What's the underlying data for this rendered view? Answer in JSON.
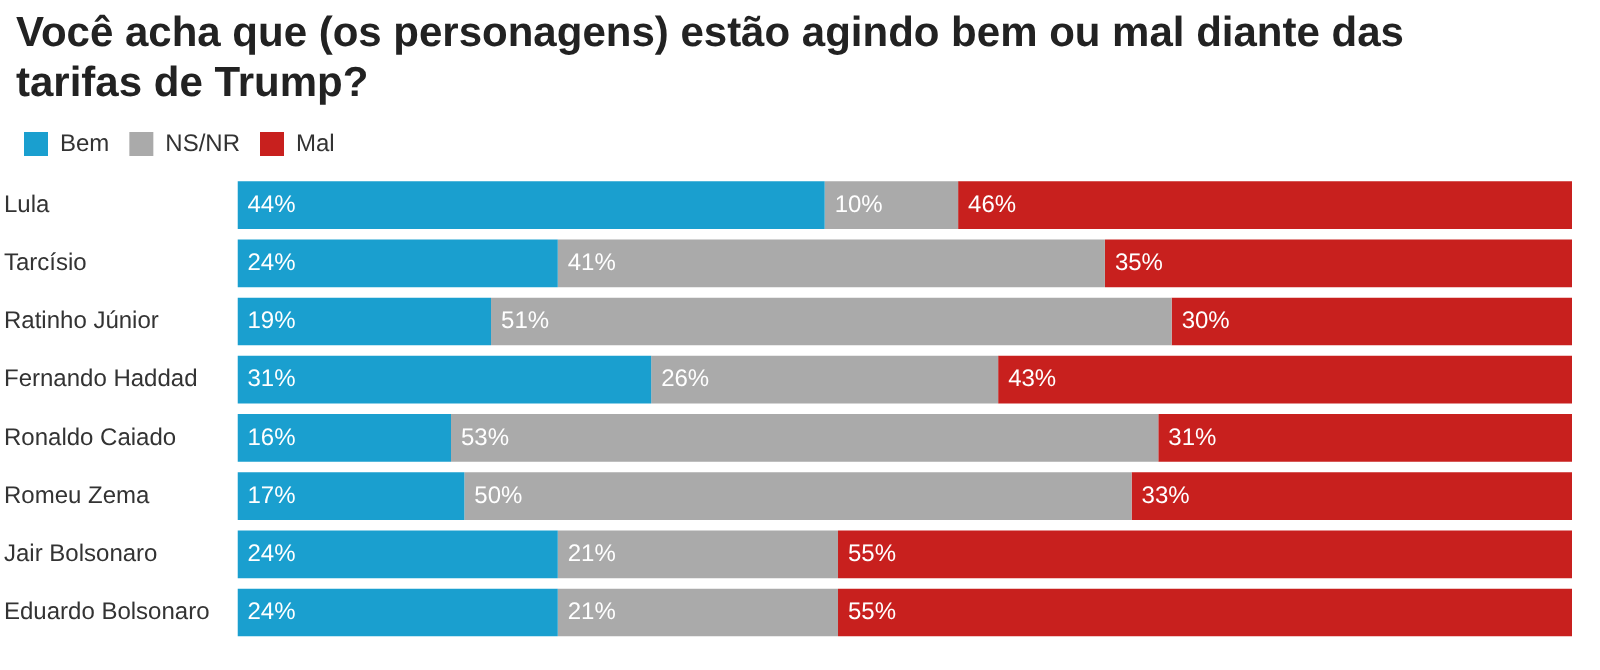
{
  "chart_data": {
    "type": "bar",
    "orientation": "horizontal",
    "stacked": true,
    "title": "Você acha que (os personagens) estão agindo bem ou mal diante das tarifas de Trump?",
    "categories": [
      "Lula",
      "Tarcísio",
      "Ratinho Júnior",
      "Fernando Haddad",
      "Ronaldo Caiado",
      "Romeu Zema",
      "Jair Bolsonaro",
      "Eduardo Bolsonaro"
    ],
    "series": [
      {
        "name": "Bem",
        "color": "#1a9fcf",
        "values": [
          44,
          24,
          19,
          31,
          16,
          17,
          24,
          24
        ],
        "value_labels": [
          "44%",
          "24%",
          "19%",
          "31%",
          "16%",
          "17%",
          "24%",
          "24%"
        ]
      },
      {
        "name": "NS/NR",
        "color": "#aaaaaa",
        "values": [
          10,
          41,
          51,
          26,
          53,
          50,
          21,
          21
        ],
        "value_labels": [
          "10%",
          "41%",
          "51%",
          "26%",
          "53%",
          "50%",
          "21%",
          "21%"
        ]
      },
      {
        "name": "Mal",
        "color": "#c8201e",
        "values": [
          46,
          35,
          30,
          43,
          31,
          33,
          55,
          55
        ],
        "value_labels": [
          "46%",
          "35%",
          "30%",
          "43%",
          "31%",
          "33%",
          "55%",
          "55%"
        ]
      }
    ],
    "xlim": [
      0,
      100
    ],
    "tick_labels": "y",
    "legend": "top left"
  }
}
